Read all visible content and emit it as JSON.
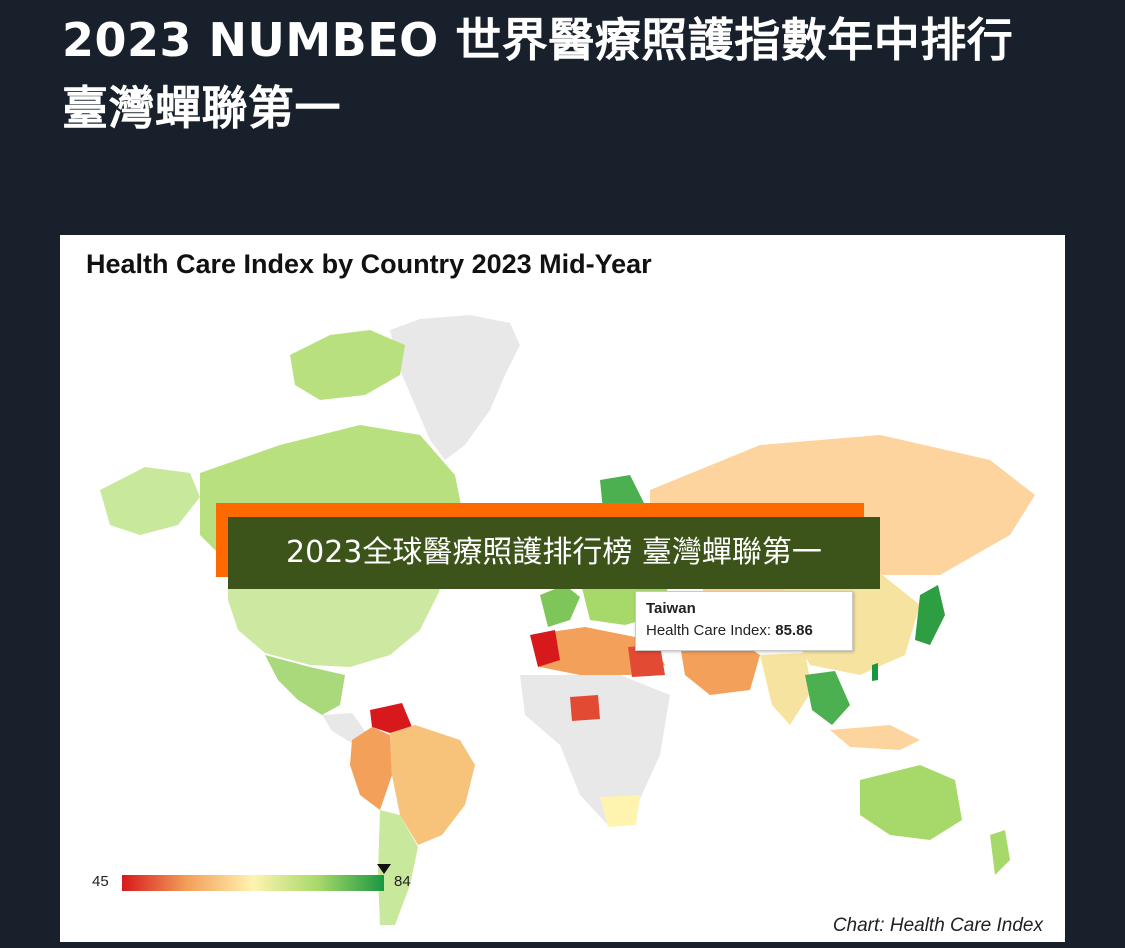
{
  "article": {
    "headline": "2023 NUMBEO 世界醫療照護指數年中排行 臺灣蟬聯第一"
  },
  "figure": {
    "chart_title": "Health Care Index by Country 2023 Mid-Year",
    "banner": "2023全球醫療照護排行榜 臺灣蟬聯第一",
    "tooltip": {
      "country": "Taiwan",
      "metric_label": "Health Care Index:",
      "value": "85.86"
    },
    "legend": {
      "min": "45",
      "max": "84"
    },
    "credit": "Chart: Health Care Index"
  },
  "colors": {
    "page_background": "#18202b",
    "banner_background": "#3c5319",
    "banner_accent": "#ff6a00",
    "scale_low": "#d7191c",
    "scale_mid": "#fff3b0",
    "scale_high": "#1a9641",
    "no_data": "#e8e8e8"
  },
  "chart_data": {
    "type": "choropleth",
    "metric": "Health Care Index",
    "scale_range": [
      45,
      84
    ],
    "highlighted": {
      "country": "Taiwan",
      "value": 85.86
    }
  }
}
